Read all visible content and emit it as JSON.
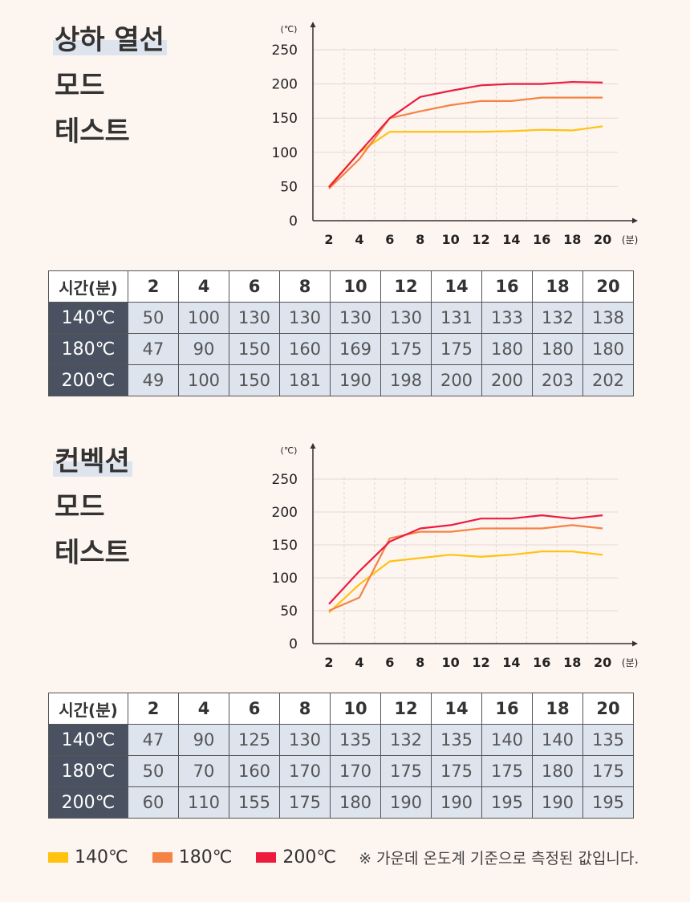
{
  "legend": {
    "items": [
      {
        "label": "140℃",
        "color": "#ffc20e"
      },
      {
        "label": "180℃",
        "color": "#f58345"
      },
      {
        "label": "200℃",
        "color": "#ec1c3f"
      }
    ],
    "note": "※ 가운데 온도계 기준으로 측정된 값입니다."
  },
  "chart_data": [
    {
      "type": "line",
      "title": "상하 열선 모드 테스트",
      "title_lines": [
        "상하 열선",
        "모드",
        "테스트"
      ],
      "y_unit": "(℃)",
      "x_unit": "(분)",
      "x": [
        2,
        4,
        6,
        8,
        10,
        12,
        14,
        16,
        18,
        20
      ],
      "x_ticks": [
        "2",
        "4",
        "6",
        "8",
        "10",
        "12",
        "14",
        "16",
        "18",
        "20"
      ],
      "y_ticks": [
        "0",
        "50",
        "100",
        "150",
        "200",
        "250"
      ],
      "ylim": [
        0,
        250
      ],
      "grid": true,
      "series": [
        {
          "name": "140℃",
          "color": "#ffc20e",
          "values": [
            50,
            100,
            130,
            130,
            130,
            130,
            131,
            133,
            132,
            138
          ]
        },
        {
          "name": "180℃",
          "color": "#f58345",
          "values": [
            47,
            90,
            150,
            160,
            169,
            175,
            175,
            180,
            180,
            180
          ]
        },
        {
          "name": "200℃",
          "color": "#ec1c3f",
          "values": [
            49,
            100,
            150,
            181,
            190,
            198,
            200,
            200,
            203,
            202
          ]
        }
      ],
      "table": {
        "header": "시간(분)",
        "columns": [
          "2",
          "4",
          "6",
          "8",
          "10",
          "12",
          "14",
          "16",
          "18",
          "20"
        ],
        "rows": [
          {
            "label": "140℃",
            "values": [
              "50",
              "100",
              "130",
              "130",
              "130",
              "130",
              "131",
              "133",
              "132",
              "138"
            ]
          },
          {
            "label": "180℃",
            "values": [
              "47",
              "90",
              "150",
              "160",
              "169",
              "175",
              "175",
              "180",
              "180",
              "180"
            ]
          },
          {
            "label": "200℃",
            "values": [
              "49",
              "100",
              "150",
              "181",
              "190",
              "198",
              "200",
              "200",
              "203",
              "202"
            ]
          }
        ]
      }
    },
    {
      "type": "line",
      "title": "컨벡션 모드 테스트",
      "title_lines": [
        "컨벡션",
        "모드",
        "테스트"
      ],
      "y_unit": "(℃)",
      "x_unit": "(분)",
      "x": [
        2,
        4,
        6,
        8,
        10,
        12,
        14,
        16,
        18,
        20
      ],
      "x_ticks": [
        "2",
        "4",
        "6",
        "8",
        "10",
        "12",
        "14",
        "16",
        "18",
        "20"
      ],
      "y_ticks": [
        "0",
        "50",
        "100",
        "150",
        "200",
        "250"
      ],
      "ylim": [
        0,
        250
      ],
      "grid": true,
      "series": [
        {
          "name": "140℃",
          "color": "#ffc20e",
          "values": [
            47,
            90,
            125,
            130,
            135,
            132,
            135,
            140,
            140,
            135
          ]
        },
        {
          "name": "180℃",
          "color": "#f58345",
          "values": [
            50,
            70,
            160,
            170,
            170,
            175,
            175,
            175,
            180,
            175
          ]
        },
        {
          "name": "200℃",
          "color": "#ec1c3f",
          "values": [
            60,
            110,
            155,
            175,
            180,
            190,
            190,
            195,
            190,
            195
          ]
        }
      ],
      "table": {
        "header": "시간(분)",
        "columns": [
          "2",
          "4",
          "6",
          "8",
          "10",
          "12",
          "14",
          "16",
          "18",
          "20"
        ],
        "rows": [
          {
            "label": "140℃",
            "values": [
              "47",
              "90",
              "125",
              "130",
              "135",
              "132",
              "135",
              "140",
              "140",
              "135"
            ]
          },
          {
            "label": "180℃",
            "values": [
              "50",
              "70",
              "160",
              "170",
              "170",
              "175",
              "175",
              "175",
              "180",
              "175"
            ]
          },
          {
            "label": "200℃",
            "values": [
              "60",
              "110",
              "155",
              "175",
              "180",
              "190",
              "190",
              "195",
              "190",
              "195"
            ]
          }
        ]
      }
    }
  ]
}
